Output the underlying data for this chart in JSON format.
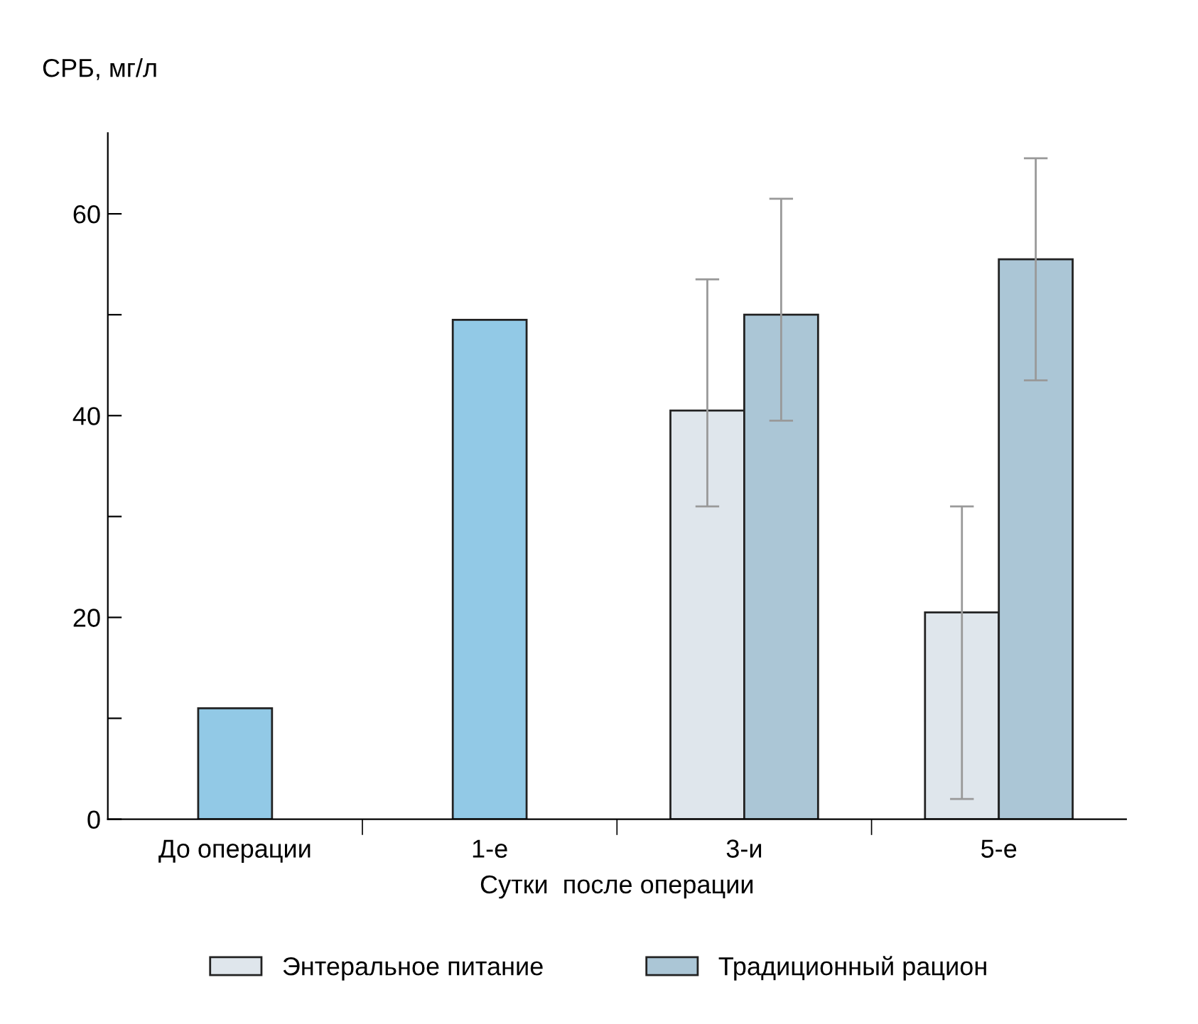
{
  "chart_data": {
    "type": "bar",
    "ylabel": "СРБ, мг/л",
    "xlabel": "Сутки  после операции",
    "categories": [
      "До операции",
      "1-е",
      "3-и",
      "5-е"
    ],
    "series": [
      {
        "color": "#92c9e6",
        "values": [
          11,
          49.5,
          null,
          null
        ],
        "errors": [
          null,
          null,
          null,
          null
        ]
      },
      {
        "name": "Энтеральное питание",
        "color": "#dfe6ec",
        "values": [
          null,
          null,
          40.5,
          20.5
        ],
        "errors": [
          null,
          null,
          [
            31,
            53.5
          ],
          [
            2,
            31
          ]
        ]
      },
      {
        "name": "Традиционный рацион",
        "color": "#abc6d6",
        "values": [
          null,
          null,
          50,
          55.5
        ],
        "errors": [
          null,
          null,
          [
            39.5,
            61.5
          ],
          [
            43.5,
            65.5
          ]
        ]
      }
    ],
    "ylim": [
      0,
      68
    ],
    "yticks": [
      0,
      {
        "value": 10,
        "label": null
      },
      20,
      {
        "value": 30,
        "label": null
      },
      40,
      {
        "value": 50,
        "label": null
      },
      60
    ],
    "grid": false,
    "legend": "bottom"
  }
}
